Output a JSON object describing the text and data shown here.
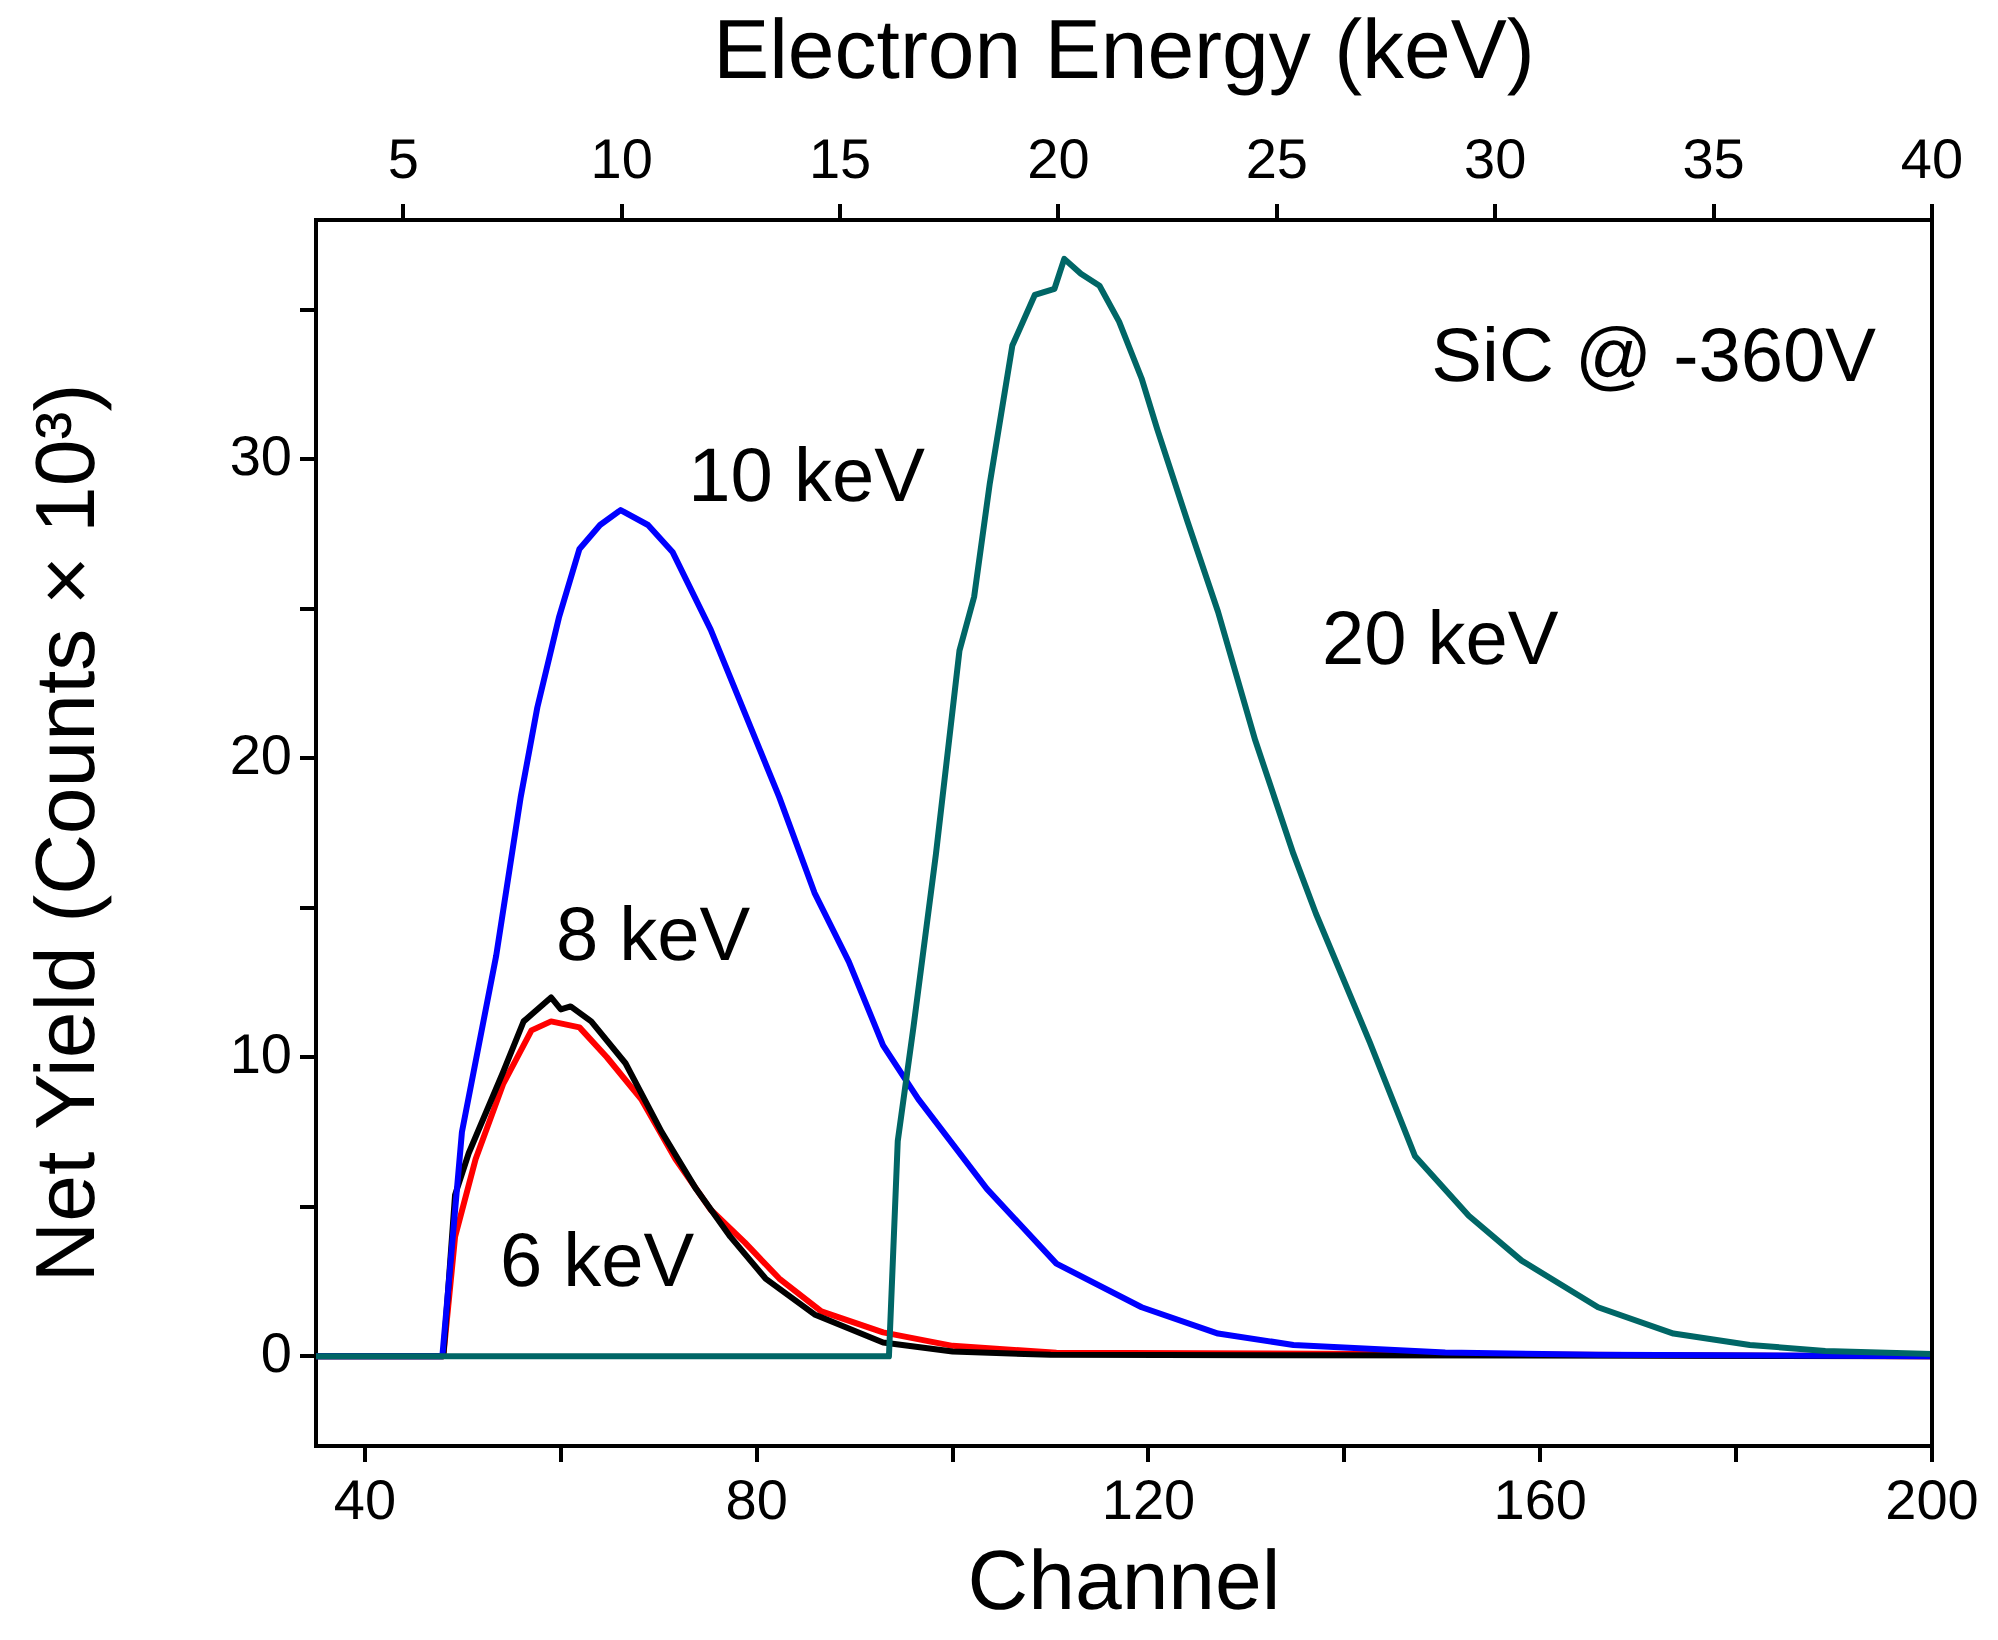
{
  "chart_data": {
    "type": "line",
    "xlabel": "Channel",
    "ylabel": "Net Yield (Counts × 10³)",
    "x2label": "Electron Energy (keV)",
    "xlim": [
      35,
      200
    ],
    "xticks": [
      40,
      {
        "value": 60,
        "label": null
      },
      80,
      {
        "value": 100,
        "label": null
      },
      120,
      {
        "value": 140,
        "label": null
      },
      160,
      {
        "value": 180,
        "label": null
      },
      200
    ],
    "x2lim": [
      3,
      40
    ],
    "x2ticks": [
      5,
      10,
      15,
      20,
      25,
      30,
      35,
      40
    ],
    "ylim": [
      -3,
      38
    ],
    "yticks": [
      0,
      {
        "value": 5,
        "label": null
      },
      10,
      {
        "value": 15,
        "label": null
      },
      20,
      {
        "value": 25,
        "label": null
      },
      30,
      {
        "value": 35,
        "label": null
      }
    ],
    "annotations": [
      "SiC @ -360V"
    ],
    "series": [
      {
        "name": "6 keV",
        "color": "#ff0000",
        "x": [
          35,
          48,
          49.2,
          51.3,
          54.1,
          57,
          59,
          61.9,
          64.7,
          68.2,
          71.7,
          75.3,
          78.8,
          82.3,
          86.6,
          92.9,
          100,
          110.6,
          200
        ],
        "values": [
          0,
          0,
          4,
          6.6,
          9.1,
          10.9,
          11.2,
          11,
          10,
          8.6,
          6.6,
          4.9,
          3.8,
          2.6,
          1.5,
          0.8,
          0.35,
          0.12,
          0
        ]
      },
      {
        "name": "8 keV",
        "color": "#000000",
        "x": [
          35,
          48,
          49.2,
          50.6,
          54.1,
          56.2,
          59,
          60,
          61,
          63.1,
          66.6,
          70.3,
          73.8,
          77.3,
          80.9,
          85.9,
          92.9,
          100,
          110,
          200
        ],
        "values": [
          0,
          0,
          5.4,
          6.8,
          9.5,
          11.2,
          12,
          11.6,
          11.7,
          11.2,
          9.8,
          7.5,
          5.6,
          4,
          2.6,
          1.4,
          0.46,
          0.16,
          0.05,
          0
        ]
      },
      {
        "name": "10 keV",
        "color": "#0000ff",
        "x": [
          35,
          47.9,
          49.9,
          53.4,
          55.9,
          57.6,
          59.8,
          61.9,
          64,
          66.1,
          68.9,
          71.4,
          75.3,
          78.8,
          82.3,
          85.9,
          89.4,
          92.9,
          96.5,
          103.5,
          110.6,
          119.3,
          127.1,
          134.8,
          150.3,
          165.9,
          200
        ],
        "values": [
          0,
          0,
          7.5,
          13.4,
          18.7,
          21.7,
          24.7,
          27,
          27.8,
          28.3,
          27.8,
          26.9,
          24.3,
          21.5,
          18.7,
          15.5,
          13.2,
          10.4,
          8.6,
          5.6,
          3.1,
          1.64,
          0.76,
          0.38,
          0.13,
          0.05,
          0
        ]
      },
      {
        "name": "20 keV",
        "color": "#006666",
        "x": [
          35,
          93.5,
          94.4,
          96,
          98.3,
          100.7,
          102.2,
          103.8,
          106.1,
          108.4,
          110.4,
          111.4,
          113.1,
          115,
          117,
          119.3,
          120.9,
          124,
          127.1,
          130.9,
          134.8,
          137.1,
          142.6,
          147.2,
          152.7,
          158.1,
          165.9,
          173.6,
          181.4,
          189.1,
          200
        ],
        "values": [
          0,
          0,
          7.2,
          11,
          16.8,
          23.6,
          25.4,
          29.2,
          33.8,
          35.5,
          35.7,
          36.7,
          36.2,
          35.8,
          34.6,
          32.7,
          31,
          27.9,
          24.9,
          20.6,
          16.8,
          14.8,
          10.5,
          6.7,
          4.7,
          3.2,
          1.64,
          0.76,
          0.38,
          0.18,
          0.08
        ]
      }
    ]
  }
}
